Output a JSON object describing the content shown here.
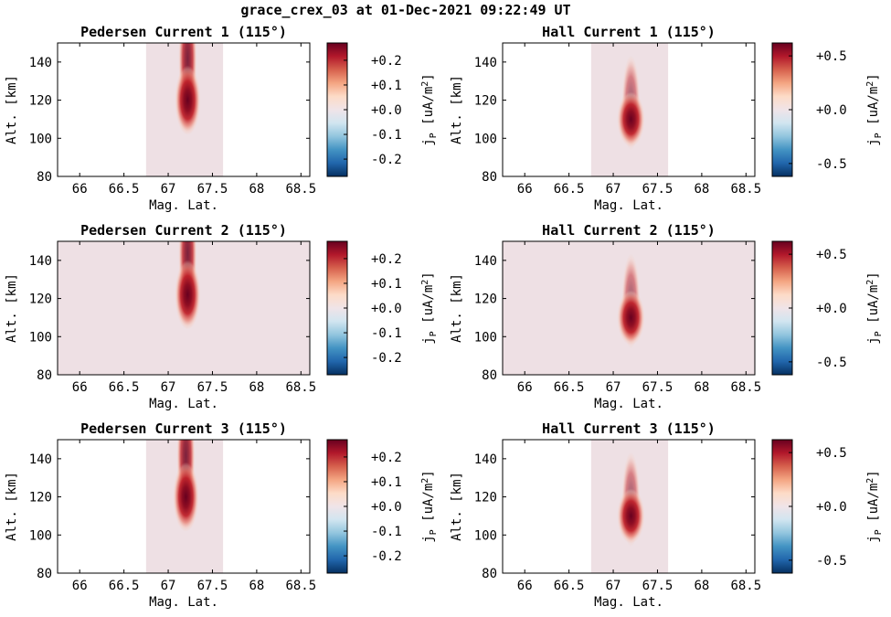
{
  "suptitle": "grace_crex_03 at 01-Dec-2021 09:22:49 UT",
  "colors": {
    "background": "#ffffff",
    "axis": "#000000",
    "cmap": [
      "#053061",
      "#2166ac",
      "#4393c3",
      "#92c5de",
      "#d1e5f0",
      "#f0e4e8",
      "#fddbc7",
      "#f4a582",
      "#d6604d",
      "#b2182b",
      "#67001f"
    ],
    "baseline_fill": "#eee0e4"
  },
  "chart_data": [
    {
      "type": "heatmap",
      "title": "Pedersen Current 1 (115°)",
      "xlabel": "Mag. Lat.",
      "ylabel": "Alt. [km]",
      "xticks": [
        "66",
        "66.5",
        "67",
        "67.5",
        "68",
        "68.5"
      ],
      "xtick_values": [
        66,
        66.5,
        67,
        67.5,
        68,
        68.5
      ],
      "yticks": [
        "80",
        "100",
        "120",
        "140"
      ],
      "ytick_values": [
        80,
        100,
        120,
        140
      ],
      "xlim": [
        65.75,
        68.6
      ],
      "ylim": [
        80,
        150
      ],
      "data_extent_x": [
        66.75,
        67.62
      ],
      "data_extent_y": [
        80,
        150
      ],
      "peak": {
        "x": 67.22,
        "y": 120,
        "value": 0.25
      },
      "cbar_label": "j_P [uA/m^2]",
      "cbar_lim": [
        -0.27,
        0.27
      ],
      "cbar_ticks": [
        "+0.2",
        "+0.1",
        "+0.0",
        "-0.1",
        "-0.2"
      ],
      "cbar_tick_values": [
        0.2,
        0.1,
        0.0,
        -0.1,
        -0.2
      ]
    },
    {
      "type": "heatmap",
      "title": "Hall Current 1 (115°)",
      "xlabel": "Mag. Lat.",
      "ylabel": "Alt. [km]",
      "xticks": [
        "66",
        "66.5",
        "67",
        "67.5",
        "68",
        "68.5"
      ],
      "xtick_values": [
        66,
        66.5,
        67,
        67.5,
        68,
        68.5
      ],
      "yticks": [
        "80",
        "100",
        "120",
        "140"
      ],
      "ytick_values": [
        80,
        100,
        120,
        140
      ],
      "xlim": [
        65.75,
        68.6
      ],
      "ylim": [
        80,
        150
      ],
      "data_extent_x": [
        66.75,
        67.62
      ],
      "data_extent_y": [
        80,
        150
      ],
      "peak": {
        "x": 67.2,
        "y": 110,
        "value": 0.55
      },
      "cbar_label": "j_P [uA/m^2]",
      "cbar_lim": [
        -0.62,
        0.62
      ],
      "cbar_ticks": [
        "+0.5",
        "+0.0",
        "-0.5"
      ],
      "cbar_tick_values": [
        0.5,
        0.0,
        -0.5
      ]
    },
    {
      "type": "heatmap",
      "title": "Pedersen Current 2 (115°)",
      "xlabel": "Mag. Lat.",
      "ylabel": "Alt. [km]",
      "xticks": [
        "66",
        "66.5",
        "67",
        "67.5",
        "68",
        "68.5"
      ],
      "xtick_values": [
        66,
        66.5,
        67,
        67.5,
        68,
        68.5
      ],
      "yticks": [
        "80",
        "100",
        "120",
        "140"
      ],
      "ytick_values": [
        80,
        100,
        120,
        140
      ],
      "xlim": [
        65.75,
        68.6
      ],
      "ylim": [
        80,
        150
      ],
      "data_extent_x": [
        65.75,
        68.6
      ],
      "data_extent_y": [
        80,
        150
      ],
      "peak": {
        "x": 67.22,
        "y": 122,
        "value": 0.25
      },
      "cbar_label": "j_P [uA/m^2]",
      "cbar_lim": [
        -0.27,
        0.27
      ],
      "cbar_ticks": [
        "+0.2",
        "+0.1",
        "+0.0",
        "-0.1",
        "-0.2"
      ],
      "cbar_tick_values": [
        0.2,
        0.1,
        0.0,
        -0.1,
        -0.2
      ]
    },
    {
      "type": "heatmap",
      "title": "Hall Current 2 (115°)",
      "xlabel": "Mag. Lat.",
      "ylabel": "Alt. [km]",
      "xticks": [
        "66",
        "66.5",
        "67",
        "67.5",
        "68",
        "68.5"
      ],
      "xtick_values": [
        66,
        66.5,
        67,
        67.5,
        68,
        68.5
      ],
      "yticks": [
        "80",
        "100",
        "120",
        "140"
      ],
      "ytick_values": [
        80,
        100,
        120,
        140
      ],
      "xlim": [
        65.75,
        68.6
      ],
      "ylim": [
        80,
        150
      ],
      "data_extent_x": [
        65.75,
        68.6
      ],
      "data_extent_y": [
        80,
        150
      ],
      "peak": {
        "x": 67.2,
        "y": 110,
        "value": 0.55
      },
      "cbar_label": "j_P [uA/m^2]",
      "cbar_lim": [
        -0.62,
        0.62
      ],
      "cbar_ticks": [
        "+0.5",
        "+0.0",
        "-0.5"
      ],
      "cbar_tick_values": [
        0.5,
        0.0,
        -0.5
      ]
    },
    {
      "type": "heatmap",
      "title": "Pedersen Current 3 (115°)",
      "xlabel": "Mag. Lat.",
      "ylabel": "Alt. [km]",
      "xticks": [
        "66",
        "66.5",
        "67",
        "67.5",
        "68",
        "68.5"
      ],
      "xtick_values": [
        66,
        66.5,
        67,
        67.5,
        68,
        68.5
      ],
      "yticks": [
        "80",
        "100",
        "120",
        "140"
      ],
      "ytick_values": [
        80,
        100,
        120,
        140
      ],
      "xlim": [
        65.75,
        68.6
      ],
      "ylim": [
        80,
        150
      ],
      "data_extent_x": [
        66.75,
        67.62
      ],
      "data_extent_y": [
        80,
        150
      ],
      "peak": {
        "x": 67.2,
        "y": 120,
        "value": 0.25
      },
      "cbar_label": "j_P [uA/m^2]",
      "cbar_lim": [
        -0.27,
        0.27
      ],
      "cbar_ticks": [
        "+0.2",
        "+0.1",
        "+0.0",
        "-0.1",
        "-0.2"
      ],
      "cbar_tick_values": [
        0.2,
        0.1,
        0.0,
        -0.1,
        -0.2
      ]
    },
    {
      "type": "heatmap",
      "title": "Hall Current 3 (115°)",
      "xlabel": "Mag. Lat.",
      "ylabel": "Alt. [km]",
      "xticks": [
        "66",
        "66.5",
        "67",
        "67.5",
        "68",
        "68.5"
      ],
      "xtick_values": [
        66,
        66.5,
        67,
        67.5,
        68,
        68.5
      ],
      "yticks": [
        "80",
        "100",
        "120",
        "140"
      ],
      "ytick_values": [
        80,
        100,
        120,
        140
      ],
      "xlim": [
        65.75,
        68.6
      ],
      "ylim": [
        80,
        150
      ],
      "data_extent_x": [
        66.75,
        67.62
      ],
      "data_extent_y": [
        80,
        150
      ],
      "peak": {
        "x": 67.2,
        "y": 110,
        "value": 0.55
      },
      "cbar_label": "j_P [uA/m^2]",
      "cbar_lim": [
        -0.62,
        0.62
      ],
      "cbar_ticks": [
        "+0.5",
        "+0.0",
        "-0.5"
      ],
      "cbar_tick_values": [
        0.5,
        0.0,
        -0.5
      ]
    }
  ]
}
